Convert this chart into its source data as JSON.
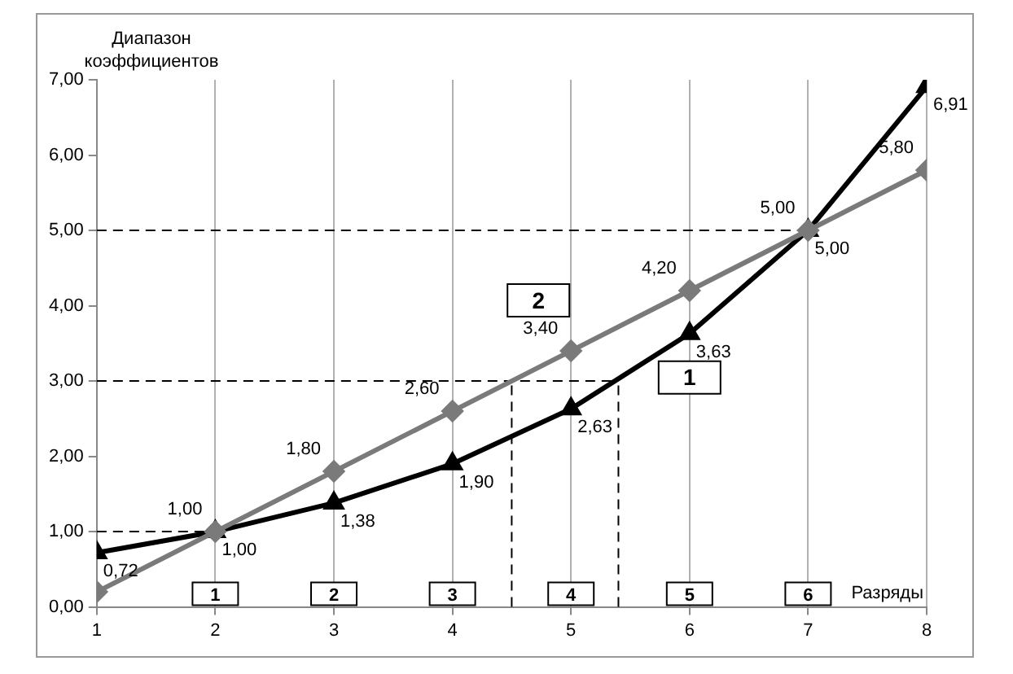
{
  "chart_data": {
    "type": "line",
    "xlabel": "Разряды",
    "ylabel": "Диапазон коэффициентов",
    "x": [
      1,
      2,
      3,
      4,
      5,
      6,
      7,
      8
    ],
    "series": [
      {
        "name": "1",
        "color": "#000000",
        "marker": "triangle",
        "values": [
          0.72,
          1.0,
          1.38,
          1.9,
          2.63,
          3.63,
          5.0,
          6.91
        ],
        "value_labels": [
          "0,72",
          "1,00",
          "1,38",
          "1,90",
          "2,63",
          "3,63",
          "5,00",
          "6,91"
        ]
      },
      {
        "name": "2",
        "color": "#7a7a7a",
        "marker": "diamond",
        "values": [
          0.2,
          1.0,
          1.8,
          2.6,
          3.4,
          4.2,
          5.0,
          5.8
        ],
        "value_labels": [
          null,
          "1,00",
          "1,80",
          "2,60",
          "3,40",
          "4,20",
          "5,00",
          "5,80"
        ]
      }
    ],
    "xlim": [
      1,
      8
    ],
    "xticks": [
      1,
      2,
      3,
      4,
      5,
      6,
      7,
      8
    ],
    "ylim": [
      0,
      7
    ],
    "yticks": [
      {
        "value": 0,
        "label": "0,00"
      },
      {
        "value": 1,
        "label": "1,00"
      },
      {
        "value": 2,
        "label": "2,00"
      },
      {
        "value": 3,
        "label": "3,00"
      },
      {
        "value": 4,
        "label": "4,00"
      },
      {
        "value": 5,
        "label": "5,00"
      },
      {
        "value": 6,
        "label": "6,00"
      },
      {
        "value": 7,
        "label": "7,00"
      }
    ],
    "grid": "x",
    "legend": false,
    "line_style": "solid",
    "ref_lines": [
      {
        "axis": "y",
        "value": 1,
        "line_style": "dashed",
        "color": "#000000"
      },
      {
        "axis": "y",
        "value": 3,
        "line_style": "dashed",
        "color": "#000000"
      },
      {
        "axis": "y",
        "value": 5,
        "line_style": "dashed",
        "color": "#000000"
      },
      {
        "axis": "x",
        "value": 4.5,
        "line_style": "dashed",
        "color": "#000000"
      },
      {
        "axis": "x",
        "value": 5.4,
        "line_style": "dashed",
        "color": "#000000"
      }
    ],
    "annotations": [
      "1",
      "2",
      "3",
      "4",
      "5",
      "6"
    ]
  }
}
